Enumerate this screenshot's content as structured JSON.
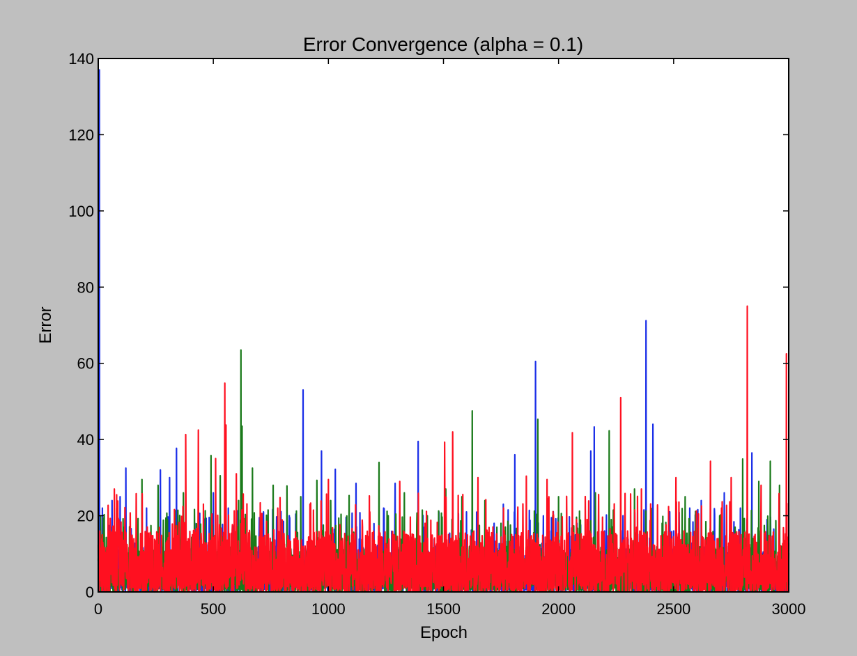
{
  "chart_data": {
    "type": "line",
    "title": "Error Convergence (alpha = 0.1)",
    "xlabel": "Epoch",
    "ylabel": "Error",
    "xlim": [
      0,
      3000
    ],
    "ylim": [
      0,
      140
    ],
    "xticks": [
      0,
      500,
      1000,
      1500,
      2000,
      2500,
      3000
    ],
    "yticks": [
      0,
      20,
      40,
      60,
      80,
      100,
      120,
      140
    ],
    "grid": false,
    "legend": "none",
    "series": [
      {
        "color": "#1a2ee8",
        "baseline_range": [
          0,
          12
        ],
        "spikes": [
          [
            5,
            137
          ],
          [
            18,
            22
          ],
          [
            60,
            24
          ],
          [
            95,
            25
          ],
          [
            120,
            32.5
          ],
          [
            210,
            22
          ],
          [
            270,
            32
          ],
          [
            310,
            30
          ],
          [
            340,
            37.7
          ],
          [
            420,
            18
          ],
          [
            500,
            26
          ],
          [
            565,
            22
          ],
          [
            600,
            21
          ],
          [
            700,
            19.5
          ],
          [
            830,
            20
          ],
          [
            890,
            53
          ],
          [
            970,
            37
          ],
          [
            1030,
            32.2
          ],
          [
            1120,
            28.5
          ],
          [
            1180,
            18
          ],
          [
            1240,
            22
          ],
          [
            1290,
            28.5
          ],
          [
            1390,
            39.5
          ],
          [
            1480,
            21
          ],
          [
            1600,
            21
          ],
          [
            1720,
            18
          ],
          [
            1760,
            23
          ],
          [
            1810,
            36
          ],
          [
            1900,
            60.5
          ],
          [
            1960,
            16
          ],
          [
            2080,
            18
          ],
          [
            2140,
            37
          ],
          [
            2155,
            43.3
          ],
          [
            2200,
            16
          ],
          [
            2280,
            20
          ],
          [
            2380,
            71.2
          ],
          [
            2410,
            44
          ],
          [
            2500,
            16
          ],
          [
            2570,
            22
          ],
          [
            2620,
            24
          ],
          [
            2720,
            26
          ],
          [
            2790,
            22
          ],
          [
            2840,
            36.5
          ],
          [
            2990,
            28.5
          ]
        ]
      },
      {
        "color": "#1a7a1a",
        "baseline_range": [
          0,
          12
        ],
        "spikes": [
          [
            10,
            20
          ],
          [
            80,
            22
          ],
          [
            110,
            17
          ],
          [
            190,
            29.5
          ],
          [
            260,
            28
          ],
          [
            300,
            19
          ],
          [
            370,
            26
          ],
          [
            490,
            35.8
          ],
          [
            530,
            30.5
          ],
          [
            610,
            24
          ],
          [
            620,
            63.5
          ],
          [
            625,
            43.5
          ],
          [
            670,
            32.5
          ],
          [
            760,
            28
          ],
          [
            820,
            27.8
          ],
          [
            880,
            25
          ],
          [
            950,
            29.3
          ],
          [
            1010,
            24
          ],
          [
            1090,
            25.3
          ],
          [
            1220,
            34
          ],
          [
            1260,
            20
          ],
          [
            1330,
            26
          ],
          [
            1430,
            20
          ],
          [
            1510,
            27
          ],
          [
            1580,
            25
          ],
          [
            1625,
            47.5
          ],
          [
            1680,
            24
          ],
          [
            1750,
            18
          ],
          [
            1910,
            45.3
          ],
          [
            2000,
            25
          ],
          [
            2160,
            26
          ],
          [
            2220,
            42.3
          ],
          [
            2330,
            27
          ],
          [
            2450,
            18
          ],
          [
            2550,
            25
          ],
          [
            2700,
            20
          ],
          [
            2800,
            34.9
          ],
          [
            2870,
            29
          ],
          [
            2920,
            34.3
          ],
          [
            2960,
            28
          ]
        ]
      },
      {
        "color": "#ff1020",
        "baseline_range": [
          0,
          16
        ],
        "spikes": [
          [
            20,
            13
          ],
          [
            70,
            27
          ],
          [
            165,
            25.8
          ],
          [
            380,
            41.3
          ],
          [
            435,
            42.5
          ],
          [
            510,
            35
          ],
          [
            550,
            54.8
          ],
          [
            555,
            43.8
          ],
          [
            600,
            31
          ],
          [
            780,
            22
          ],
          [
            920,
            23
          ],
          [
            1000,
            29.5
          ],
          [
            1180,
            21
          ],
          [
            1310,
            29
          ],
          [
            1420,
            18
          ],
          [
            1505,
            39.3
          ],
          [
            1540,
            42
          ],
          [
            1650,
            30
          ],
          [
            1860,
            30.4
          ],
          [
            1950,
            29.5
          ],
          [
            2060,
            41.8
          ],
          [
            2270,
            51
          ],
          [
            2360,
            27
          ],
          [
            2510,
            30
          ],
          [
            2660,
            34.3
          ],
          [
            2750,
            30
          ],
          [
            2820,
            75
          ],
          [
            2880,
            28
          ],
          [
            2990,
            62.5
          ]
        ]
      }
    ]
  }
}
